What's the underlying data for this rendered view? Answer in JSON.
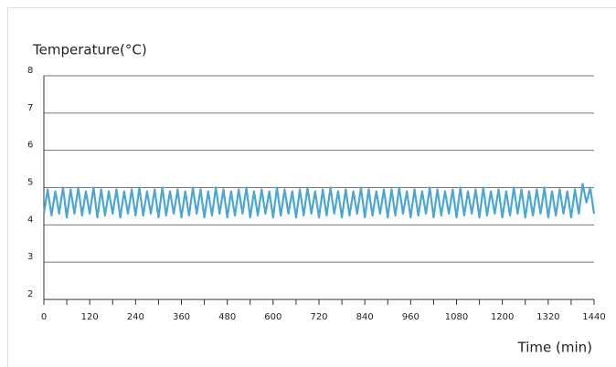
{
  "chart_data": {
    "type": "line",
    "ylabel": "Temperature(°C)",
    "xlabel": "Time (min)",
    "xlim": [
      0,
      1440
    ],
    "xticks": [
      0,
      120,
      240,
      360,
      480,
      600,
      720,
      840,
      960,
      1080,
      1200,
      1320,
      1440
    ],
    "xminorticks": [
      60,
      180,
      300,
      420,
      540,
      660,
      780,
      900,
      1020,
      1140,
      1260,
      1380
    ],
    "ylim": [
      2,
      8
    ],
    "yticks": [
      2,
      3,
      4,
      5,
      6,
      7,
      8
    ],
    "grid": true,
    "series": [
      {
        "color": "#4ba6d3",
        "x": [
          0,
          10,
          20,
          30,
          40,
          50,
          60,
          70,
          80,
          90,
          100,
          110,
          120,
          130,
          140,
          150,
          160,
          170,
          180,
          190,
          200,
          210,
          220,
          230,
          240,
          250,
          260,
          270,
          280,
          290,
          300,
          310,
          320,
          330,
          340,
          350,
          360,
          370,
          380,
          390,
          400,
          410,
          420,
          430,
          440,
          450,
          460,
          470,
          480,
          490,
          500,
          510,
          520,
          530,
          540,
          550,
          560,
          570,
          580,
          590,
          600,
          610,
          620,
          630,
          640,
          650,
          660,
          670,
          680,
          690,
          700,
          710,
          720,
          730,
          740,
          750,
          760,
          770,
          780,
          790,
          800,
          810,
          820,
          830,
          840,
          850,
          860,
          870,
          880,
          890,
          900,
          910,
          920,
          930,
          940,
          950,
          960,
          970,
          980,
          990,
          1000,
          1010,
          1020,
          1030,
          1040,
          1050,
          1060,
          1070,
          1080,
          1090,
          1100,
          1110,
          1120,
          1130,
          1140,
          1150,
          1160,
          1170,
          1180,
          1190,
          1200,
          1210,
          1220,
          1230,
          1240,
          1250,
          1260,
          1270,
          1280,
          1290,
          1300,
          1310,
          1320,
          1330,
          1340,
          1350,
          1360,
          1370,
          1380,
          1390,
          1400,
          1410,
          1420,
          1430,
          1440
        ],
        "values": [
          4.3,
          4.95,
          4.25,
          4.9,
          4.3,
          5.0,
          4.2,
          4.95,
          4.3,
          5.0,
          4.25,
          4.9,
          4.3,
          5.0,
          4.2,
          4.95,
          4.25,
          4.9,
          4.3,
          4.95,
          4.2,
          4.9,
          4.3,
          4.95,
          4.25,
          5.0,
          4.25,
          4.9,
          4.3,
          4.95,
          4.2,
          5.0,
          4.25,
          4.9,
          4.3,
          4.95,
          4.2,
          4.9,
          4.25,
          5.0,
          4.3,
          4.95,
          4.2,
          4.9,
          4.25,
          5.0,
          4.3,
          4.95,
          4.2,
          4.9,
          4.25,
          4.95,
          4.3,
          5.0,
          4.2,
          4.9,
          4.25,
          4.95,
          4.3,
          4.9,
          4.2,
          5.0,
          4.25,
          4.95,
          4.3,
          4.9,
          4.2,
          4.95,
          4.25,
          5.0,
          4.3,
          4.9,
          4.2,
          4.95,
          4.25,
          5.0,
          4.3,
          4.9,
          4.2,
          4.95,
          4.25,
          4.9,
          4.3,
          5.0,
          4.2,
          4.95,
          4.25,
          4.9,
          4.3,
          4.95,
          4.2,
          4.95,
          4.25,
          5.0,
          4.3,
          4.9,
          4.2,
          4.95,
          4.25,
          4.9,
          4.3,
          5.0,
          4.2,
          4.95,
          4.25,
          4.9,
          4.3,
          4.95,
          4.2,
          5.0,
          4.25,
          4.9,
          4.3,
          4.95,
          4.2,
          5.0,
          4.25,
          4.9,
          4.3,
          4.95,
          4.2,
          4.9,
          4.25,
          5.0,
          4.3,
          4.95,
          4.2,
          4.9,
          4.25,
          4.95,
          4.3,
          5.0,
          4.2,
          4.9,
          4.25,
          4.95,
          4.3,
          4.9,
          4.2,
          4.95,
          4.3,
          5.1,
          4.6,
          5.0,
          4.3
        ]
      }
    ]
  }
}
